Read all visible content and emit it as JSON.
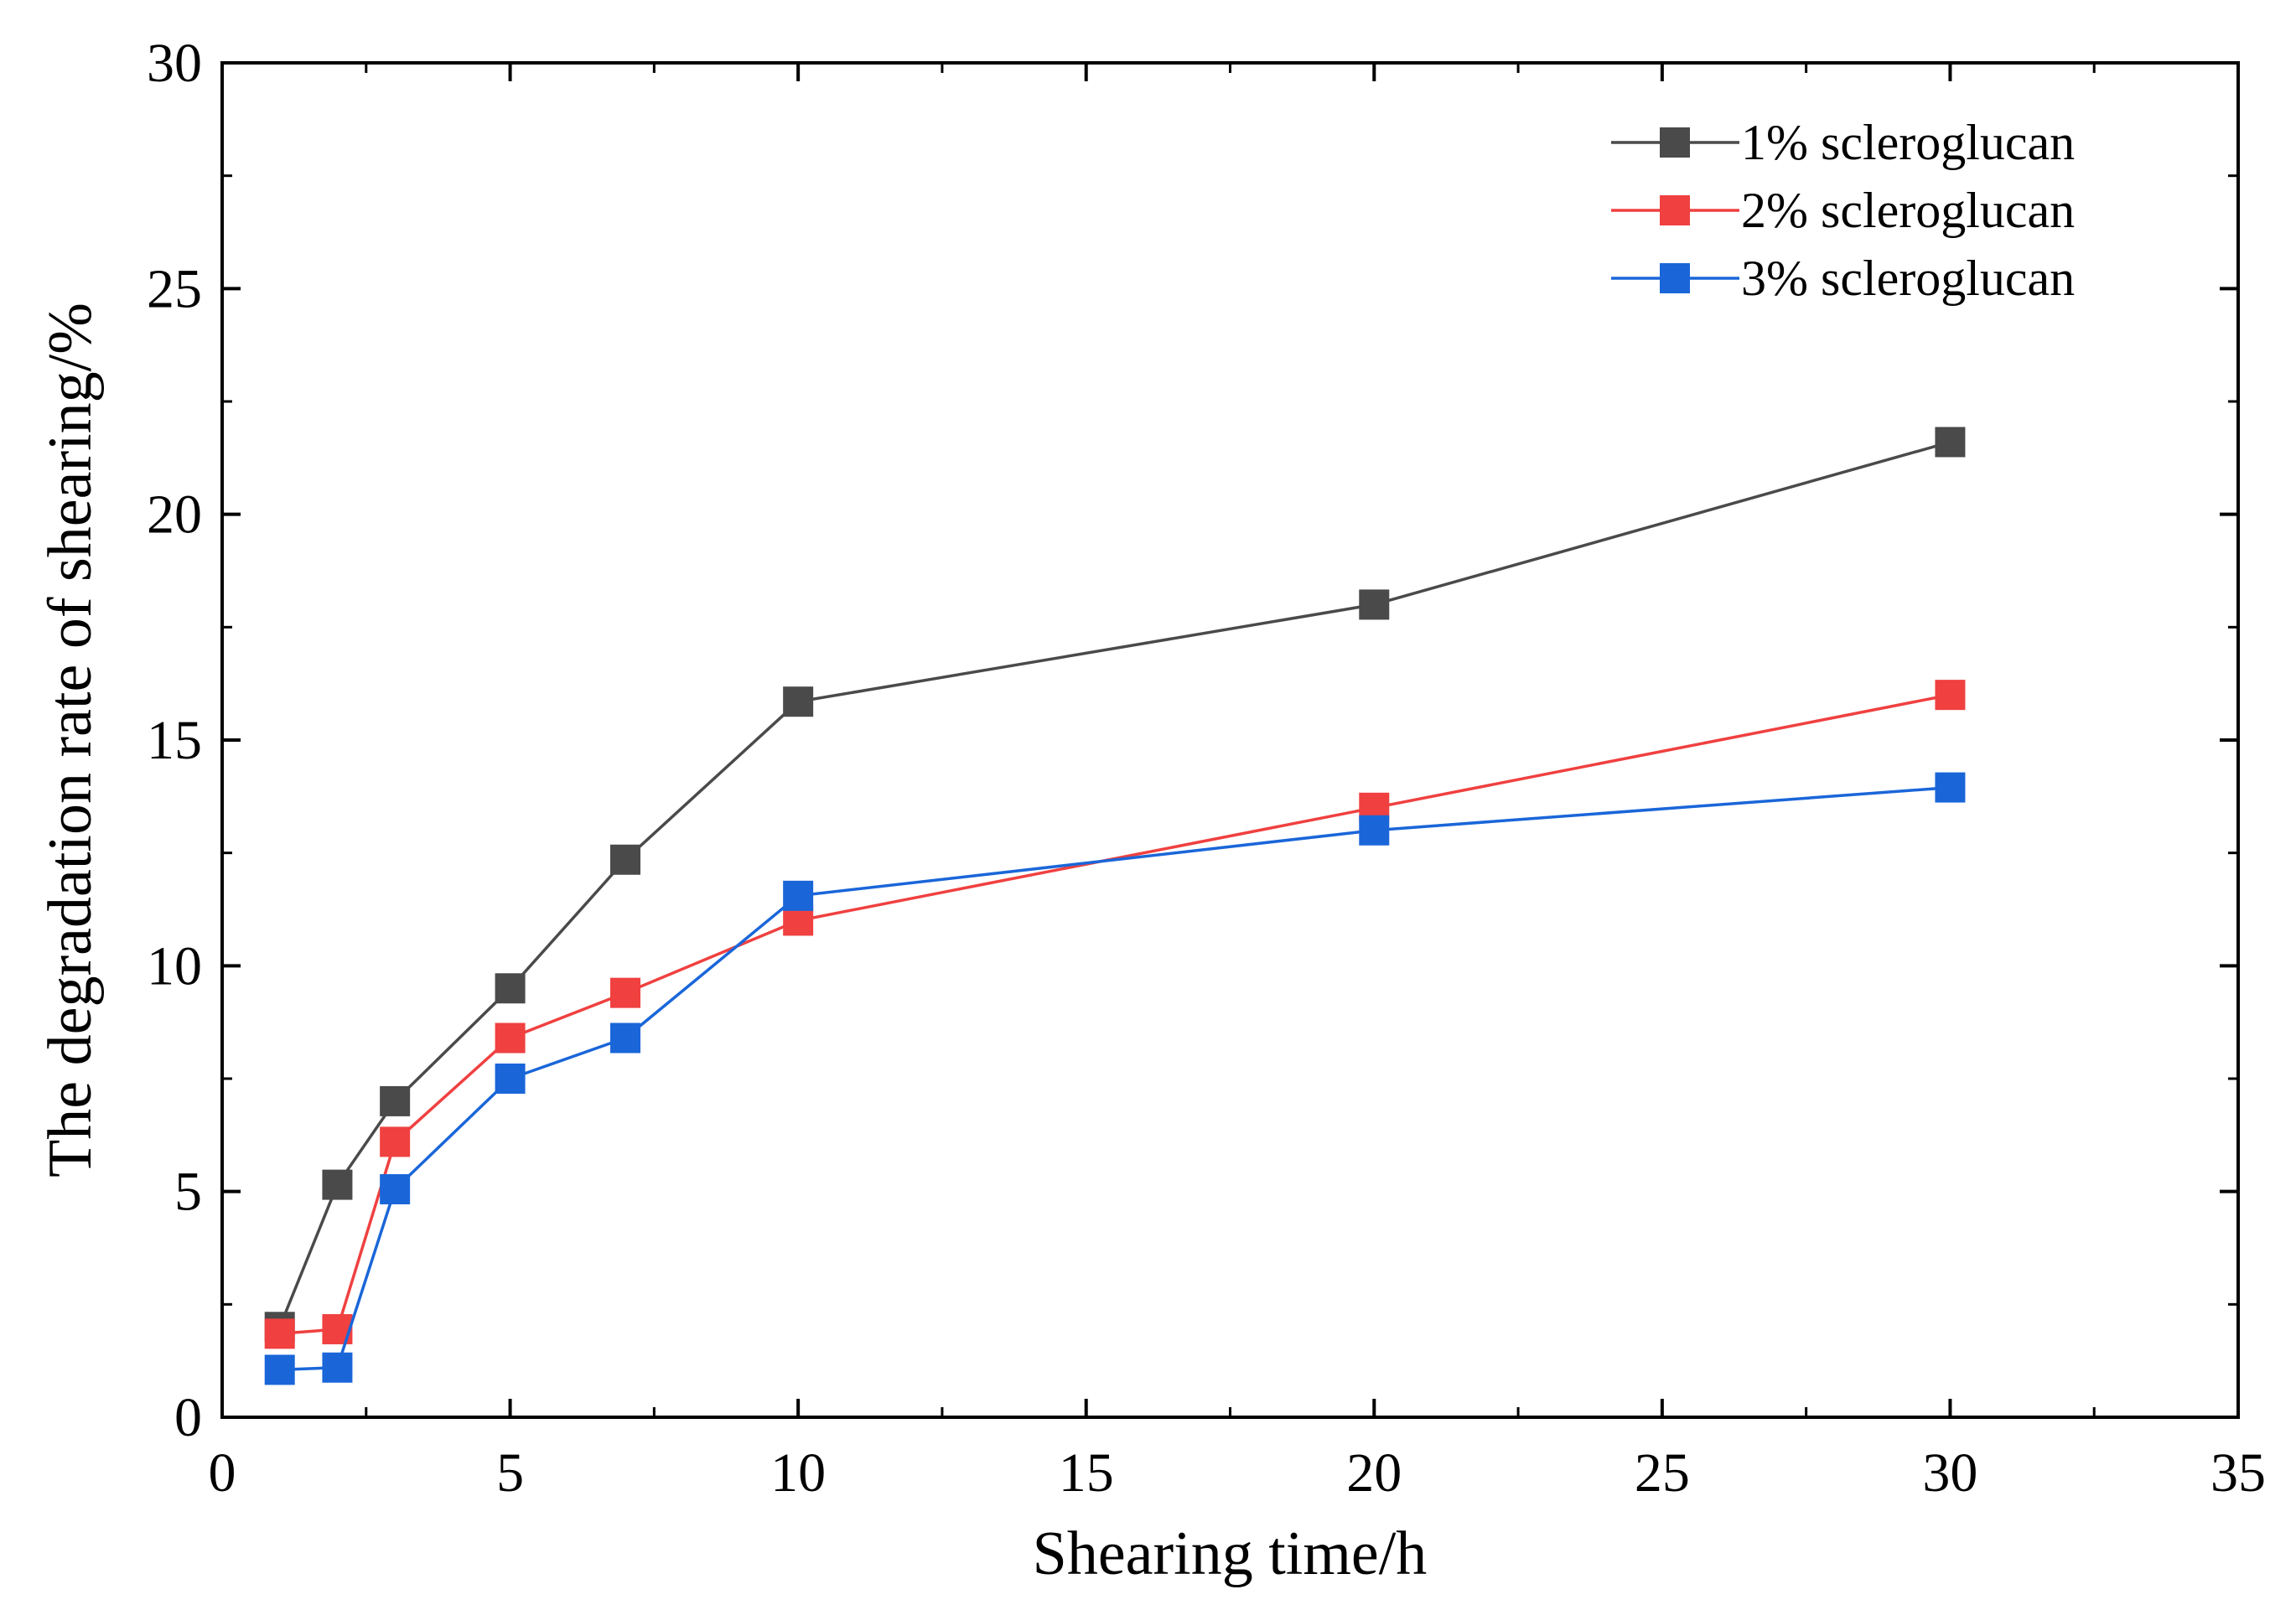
{
  "chart_data": {
    "type": "line",
    "title": "",
    "xlabel": "Shearing time/h",
    "ylabel": "The degradation rate of shearing/%",
    "xlim": [
      0,
      35
    ],
    "ylim": [
      0,
      30
    ],
    "xticks": [
      0,
      5,
      10,
      15,
      20,
      25,
      30,
      35
    ],
    "yticks": [
      0,
      5,
      10,
      15,
      20,
      25,
      30
    ],
    "xtick_labels": [
      "0",
      "5",
      "10",
      "15",
      "20",
      "25",
      "30",
      "35"
    ],
    "ytick_labels": [
      "0",
      "5",
      "10",
      "15",
      "20",
      "25",
      "30"
    ],
    "grid": false,
    "legend_position": "top-right",
    "marker": "square",
    "x": [
      1,
      2,
      3,
      5,
      7,
      10,
      20,
      30
    ],
    "series": [
      {
        "name": "1% scleroglucan",
        "color": "#4a4a4a",
        "values": [
          2.0,
          5.15,
          7.0,
          9.5,
          12.35,
          15.85,
          18.0,
          21.6
        ]
      },
      {
        "name": "2% scleroglucan",
        "color": "#f04040",
        "values": [
          1.85,
          1.95,
          6.1,
          8.4,
          9.4,
          11.0,
          13.5,
          16.0
        ]
      },
      {
        "name": "3% scleroglucan",
        "color": "#1a66d9",
        "values": [
          1.05,
          1.1,
          5.05,
          7.5,
          8.4,
          11.55,
          13.0,
          13.95
        ]
      }
    ]
  }
}
